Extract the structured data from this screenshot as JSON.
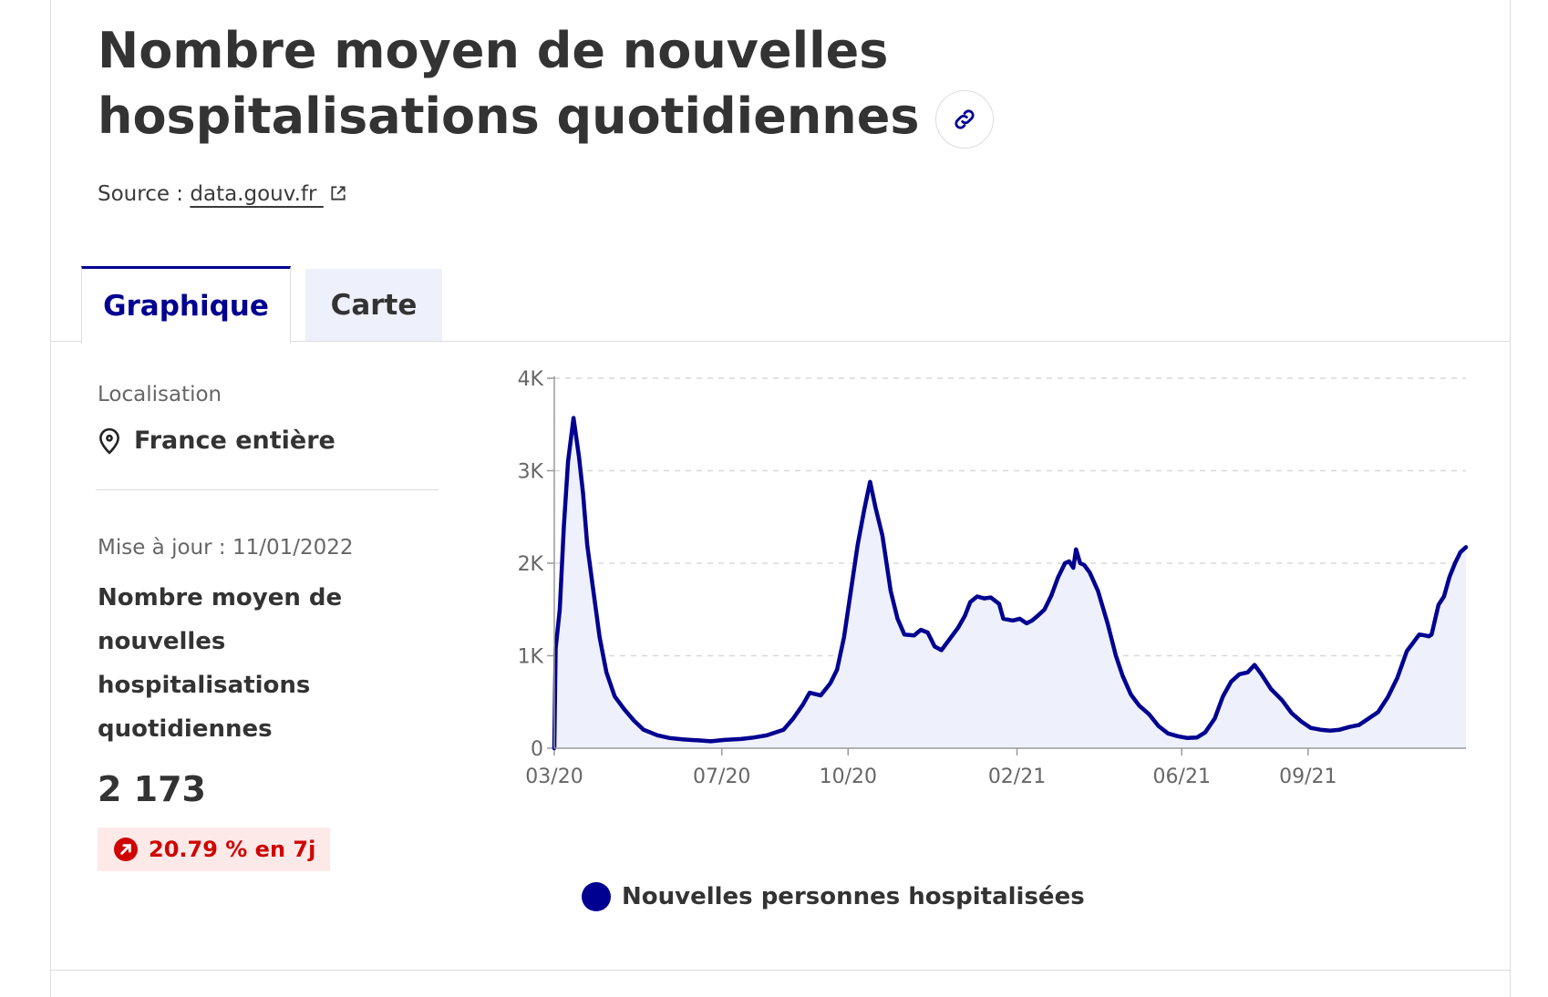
{
  "header": {
    "title": "Nombre moyen de nouvelles hospitalisations quotidiennes",
    "source_label": "Source :",
    "source_link": "data.gouv.fr"
  },
  "tabs": [
    {
      "label": "Graphique",
      "active": true
    },
    {
      "label": "Carte",
      "active": false
    }
  ],
  "sidebar": {
    "location_label": "Localisation",
    "location_value": "France entière",
    "updated": "Mise à jour : 11/01/2022",
    "kpi_label": "Nombre moyen de nouvelles hospitalisations quotidiennes",
    "kpi_value": "2 173",
    "trend": "20.79 % en 7j"
  },
  "colors": {
    "accent": "#000091",
    "area_fill": "#eef0fb",
    "trend": "#ce0500",
    "trend_bg": "#fee9e9"
  },
  "icons": {
    "title_anchor": "link-icon",
    "source_link": "external-link-icon",
    "location": "map-pin-icon",
    "trend": "arrow-up-right-icon"
  },
  "chart_data": {
    "type": "area",
    "title": "",
    "xlabel": "",
    "ylabel": "",
    "ylim": [
      0,
      4000
    ],
    "yticks": [
      0,
      1000,
      2000,
      3000,
      4000
    ],
    "ytick_labels": [
      "0",
      "1K",
      "2K",
      "3K",
      "4K"
    ],
    "xlim": [
      "2020-03-18",
      "2022-01-11"
    ],
    "xtick_labels": [
      {
        "date": "2020-03-18",
        "label": "03/20"
      },
      {
        "date": "2020-07-18",
        "label": "07/20"
      },
      {
        "date": "2020-10-18",
        "label": "10/20"
      },
      {
        "date": "2021-02-18",
        "label": "02/21"
      },
      {
        "date": "2021-06-18",
        "label": "06/21"
      },
      {
        "date": "2021-09-18",
        "label": "09/21"
      }
    ],
    "grid": true,
    "legend": "bottom",
    "series": [
      {
        "name": "Nouvelles personnes hospitalisées",
        "color": "#000091",
        "points": [
          [
            "2020-03-18",
            0
          ],
          [
            "2020-03-19",
            1080
          ],
          [
            "2020-03-22",
            1500
          ],
          [
            "2020-03-25",
            2400
          ],
          [
            "2020-03-28",
            3100
          ],
          [
            "2020-04-01",
            3570
          ],
          [
            "2020-04-05",
            3150
          ],
          [
            "2020-04-08",
            2750
          ],
          [
            "2020-04-11",
            2200
          ],
          [
            "2020-04-15",
            1750
          ],
          [
            "2020-04-20",
            1200
          ],
          [
            "2020-04-25",
            820
          ],
          [
            "2020-05-01",
            560
          ],
          [
            "2020-05-08",
            420
          ],
          [
            "2020-05-15",
            300
          ],
          [
            "2020-05-22",
            200
          ],
          [
            "2020-06-01",
            140
          ],
          [
            "2020-06-10",
            110
          ],
          [
            "2020-06-20",
            95
          ],
          [
            "2020-07-01",
            85
          ],
          [
            "2020-07-10",
            75
          ],
          [
            "2020-07-20",
            90
          ],
          [
            "2020-08-01",
            100
          ],
          [
            "2020-08-10",
            115
          ],
          [
            "2020-08-20",
            140
          ],
          [
            "2020-09-01",
            200
          ],
          [
            "2020-09-08",
            320
          ],
          [
            "2020-09-15",
            470
          ],
          [
            "2020-09-20",
            600
          ],
          [
            "2020-09-28",
            570
          ],
          [
            "2020-10-05",
            700
          ],
          [
            "2020-10-10",
            850
          ],
          [
            "2020-10-15",
            1200
          ],
          [
            "2020-10-20",
            1700
          ],
          [
            "2020-10-25",
            2200
          ],
          [
            "2020-10-30",
            2600
          ],
          [
            "2020-11-03",
            2880
          ],
          [
            "2020-11-07",
            2600
          ],
          [
            "2020-11-12",
            2300
          ],
          [
            "2020-11-18",
            1700
          ],
          [
            "2020-11-23",
            1400
          ],
          [
            "2020-11-28",
            1230
          ],
          [
            "2020-12-05",
            1220
          ],
          [
            "2020-12-10",
            1280
          ],
          [
            "2020-12-15",
            1250
          ],
          [
            "2020-12-20",
            1100
          ],
          [
            "2020-12-25",
            1060
          ],
          [
            "2021-01-01",
            1200
          ],
          [
            "2021-01-06",
            1300
          ],
          [
            "2021-01-11",
            1430
          ],
          [
            "2021-01-15",
            1580
          ],
          [
            "2021-01-20",
            1640
          ],
          [
            "2021-01-25",
            1620
          ],
          [
            "2021-01-30",
            1630
          ],
          [
            "2021-02-05",
            1560
          ],
          [
            "2021-02-08",
            1400
          ],
          [
            "2021-02-15",
            1380
          ],
          [
            "2021-02-20",
            1400
          ],
          [
            "2021-02-25",
            1350
          ],
          [
            "2021-03-01",
            1380
          ],
          [
            "2021-03-05",
            1430
          ],
          [
            "2021-03-10",
            1500
          ],
          [
            "2021-03-15",
            1650
          ],
          [
            "2021-03-20",
            1850
          ],
          [
            "2021-03-25",
            2000
          ],
          [
            "2021-03-28",
            2020
          ],
          [
            "2021-03-31",
            1950
          ],
          [
            "2021-04-02",
            2150
          ],
          [
            "2021-04-05",
            2000
          ],
          [
            "2021-04-08",
            1980
          ],
          [
            "2021-04-12",
            1900
          ],
          [
            "2021-04-18",
            1700
          ],
          [
            "2021-04-25",
            1350
          ],
          [
            "2021-05-01",
            1000
          ],
          [
            "2021-05-06",
            780
          ],
          [
            "2021-05-12",
            580
          ],
          [
            "2021-05-18",
            460
          ],
          [
            "2021-05-25",
            370
          ],
          [
            "2021-06-01",
            240
          ],
          [
            "2021-06-08",
            160
          ],
          [
            "2021-06-15",
            130
          ],
          [
            "2021-06-22",
            110
          ],
          [
            "2021-06-29",
            115
          ],
          [
            "2021-07-05",
            170
          ],
          [
            "2021-07-12",
            320
          ],
          [
            "2021-07-18",
            560
          ],
          [
            "2021-07-24",
            720
          ],
          [
            "2021-07-30",
            800
          ],
          [
            "2021-08-05",
            820
          ],
          [
            "2021-08-10",
            900
          ],
          [
            "2021-08-15",
            800
          ],
          [
            "2021-08-22",
            640
          ],
          [
            "2021-08-30",
            520
          ],
          [
            "2021-09-06",
            380
          ],
          [
            "2021-09-13",
            290
          ],
          [
            "2021-09-20",
            220
          ],
          [
            "2021-09-27",
            200
          ],
          [
            "2021-10-04",
            190
          ],
          [
            "2021-10-11",
            200
          ],
          [
            "2021-10-18",
            230
          ],
          [
            "2021-10-25",
            250
          ],
          [
            "2021-11-01",
            320
          ],
          [
            "2021-11-08",
            390
          ],
          [
            "2021-11-15",
            550
          ],
          [
            "2021-11-22",
            760
          ],
          [
            "2021-11-29",
            1050
          ],
          [
            "2021-12-04",
            1150
          ],
          [
            "2021-12-08",
            1230
          ],
          [
            "2021-12-12",
            1220
          ],
          [
            "2021-12-15",
            1210
          ],
          [
            "2021-12-17",
            1230
          ],
          [
            "2021-12-22",
            1550
          ],
          [
            "2021-12-26",
            1640
          ],
          [
            "2021-12-30",
            1850
          ],
          [
            "2022-01-03",
            2000
          ],
          [
            "2022-01-07",
            2120
          ],
          [
            "2022-01-11",
            2173
          ]
        ]
      }
    ]
  }
}
